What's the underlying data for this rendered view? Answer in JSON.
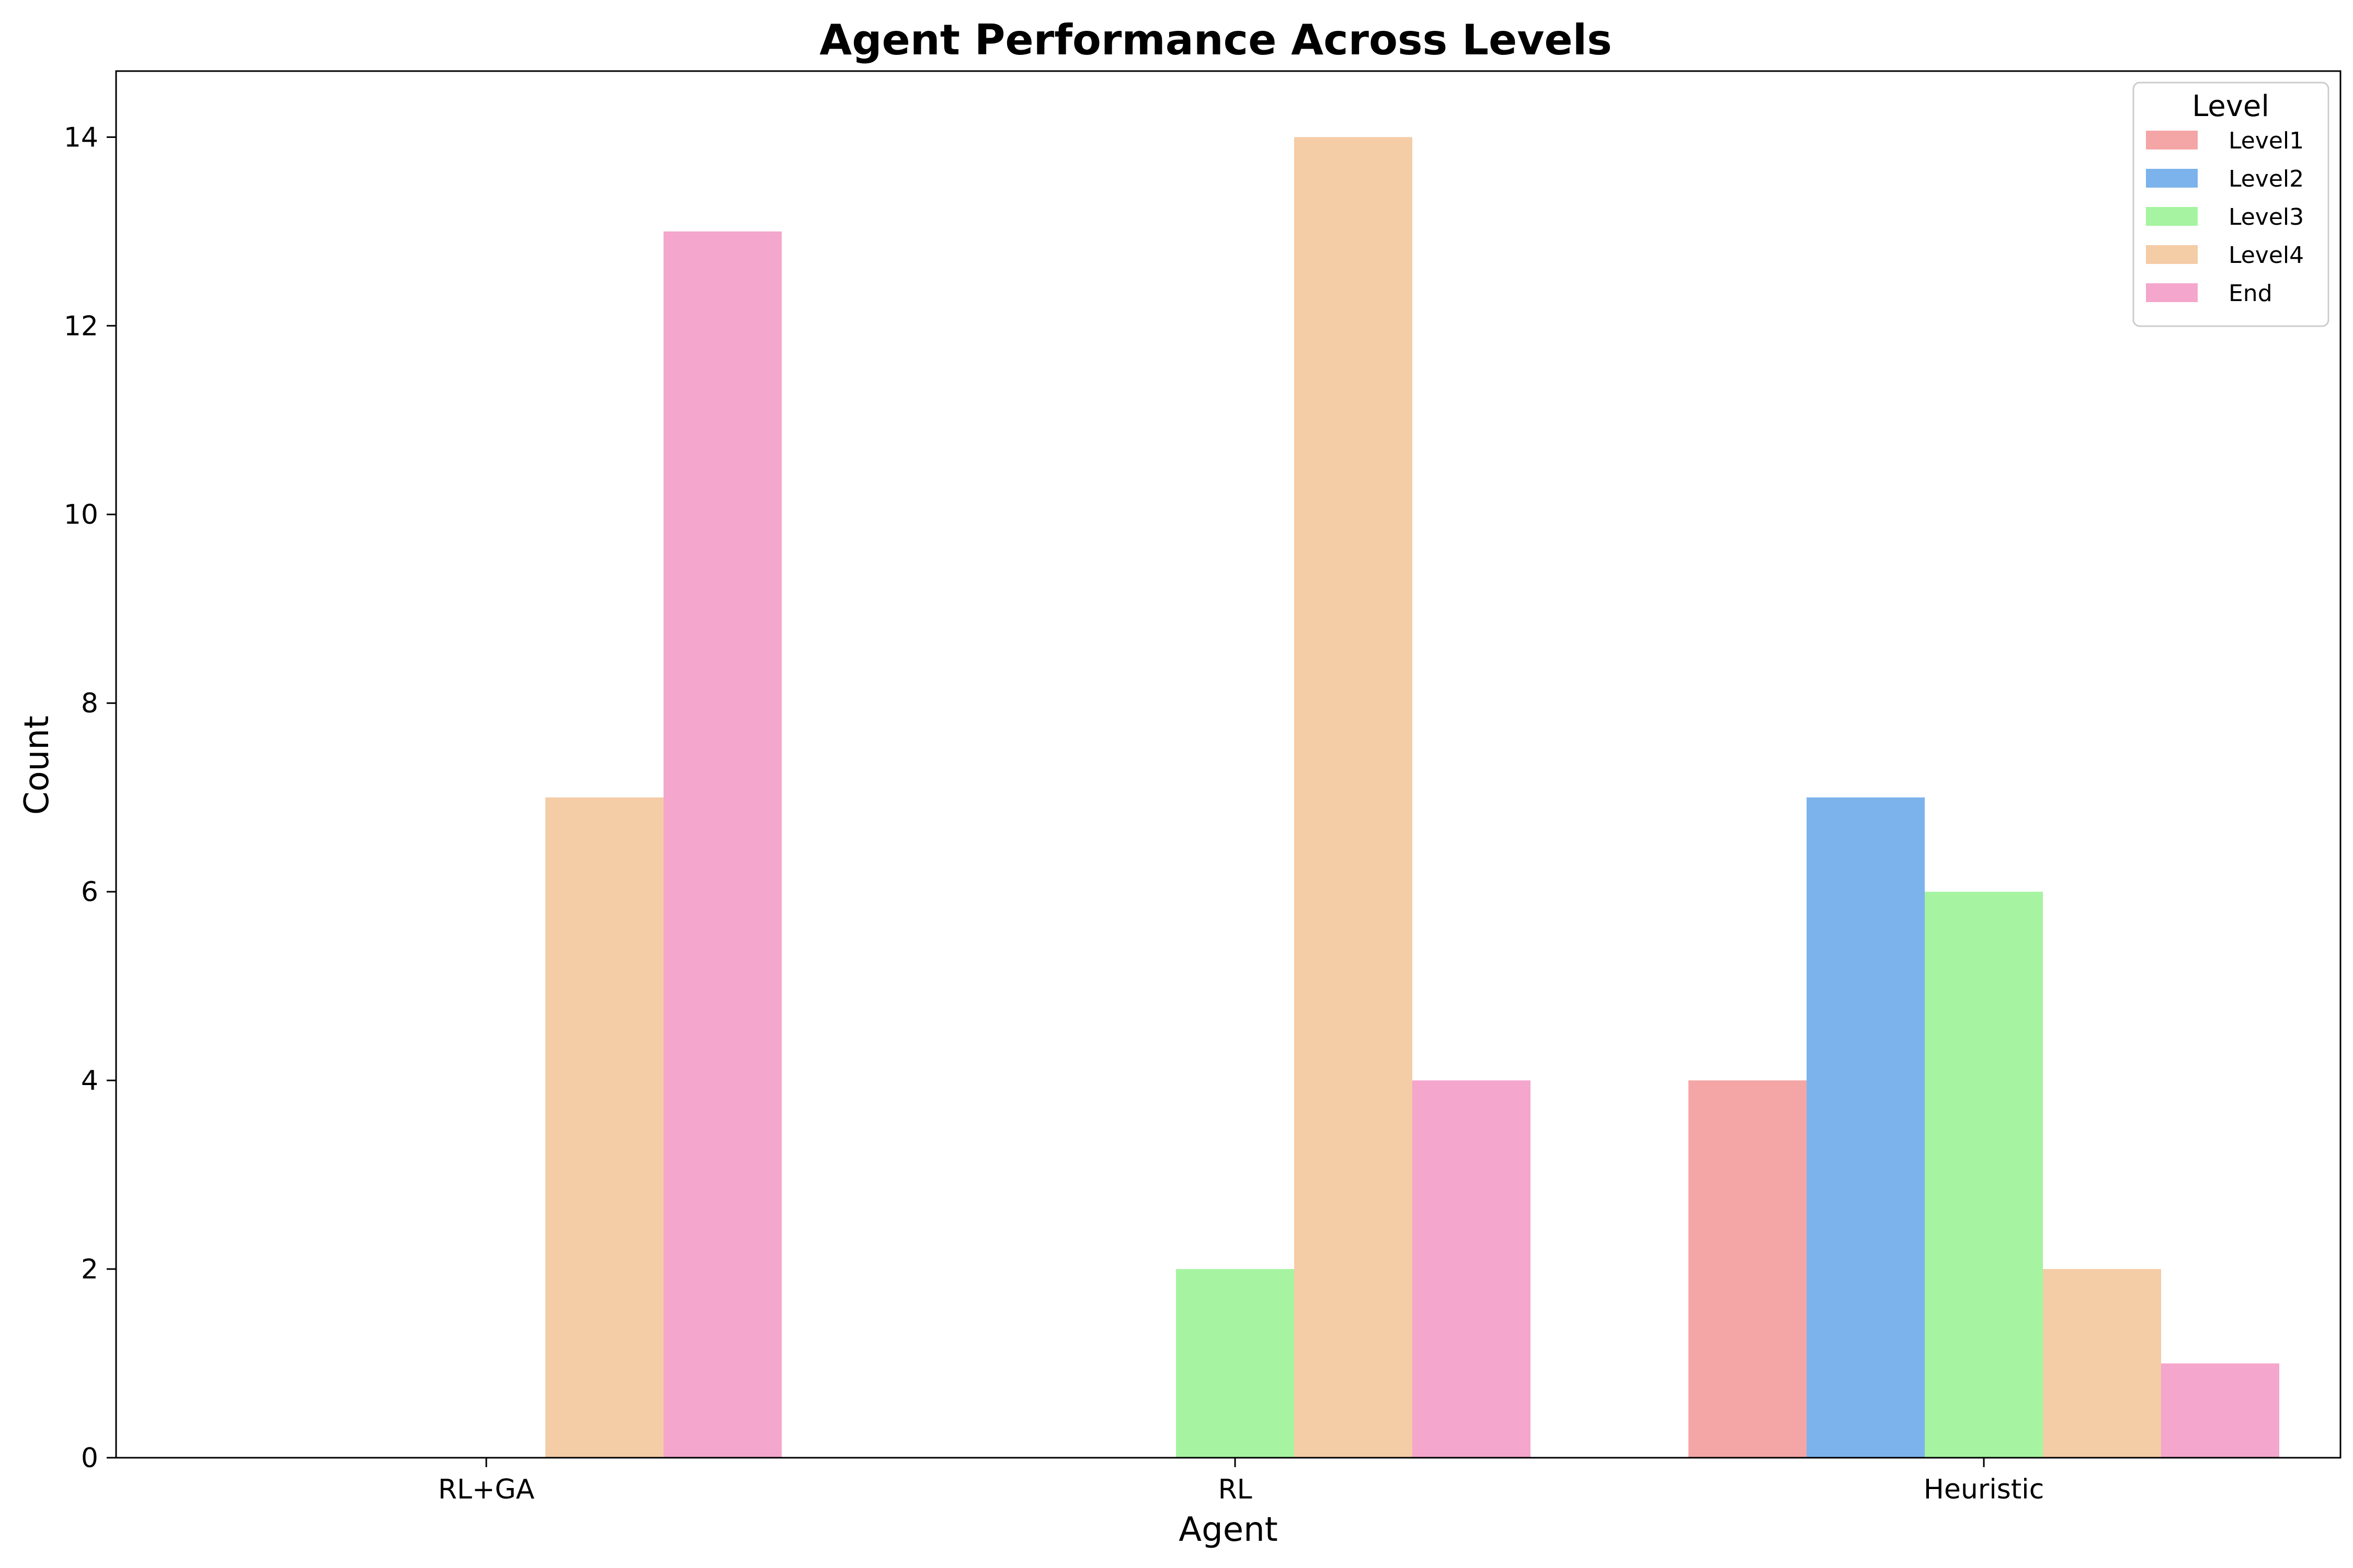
{
  "chart_data": {
    "type": "bar",
    "title": "Agent Performance Across Levels",
    "xlabel": "Agent",
    "ylabel": "Count",
    "categories": [
      "RL+GA",
      "RL",
      "Heuristic"
    ],
    "ylim": [
      0,
      14.7
    ],
    "yticks": [
      "0",
      "2",
      "4",
      "6",
      "8",
      "10",
      "12",
      "14"
    ],
    "legend": {
      "title": "Level",
      "placement": "top-right"
    },
    "grid": false,
    "series": [
      {
        "name": "Level1",
        "color": "#f4a6a6",
        "values": [
          0,
          0,
          4
        ]
      },
      {
        "name": "Level2",
        "color": "#7cb3ec",
        "values": [
          0,
          0,
          7
        ]
      },
      {
        "name": "Level3",
        "color": "#a6f4a1",
        "values": [
          0,
          2,
          6
        ]
      },
      {
        "name": "Level4",
        "color": "#f4cca6",
        "values": [
          7,
          14,
          2
        ]
      },
      {
        "name": "End",
        "color": "#f4a6cc",
        "values": [
          13,
          4,
          1
        ]
      }
    ]
  }
}
